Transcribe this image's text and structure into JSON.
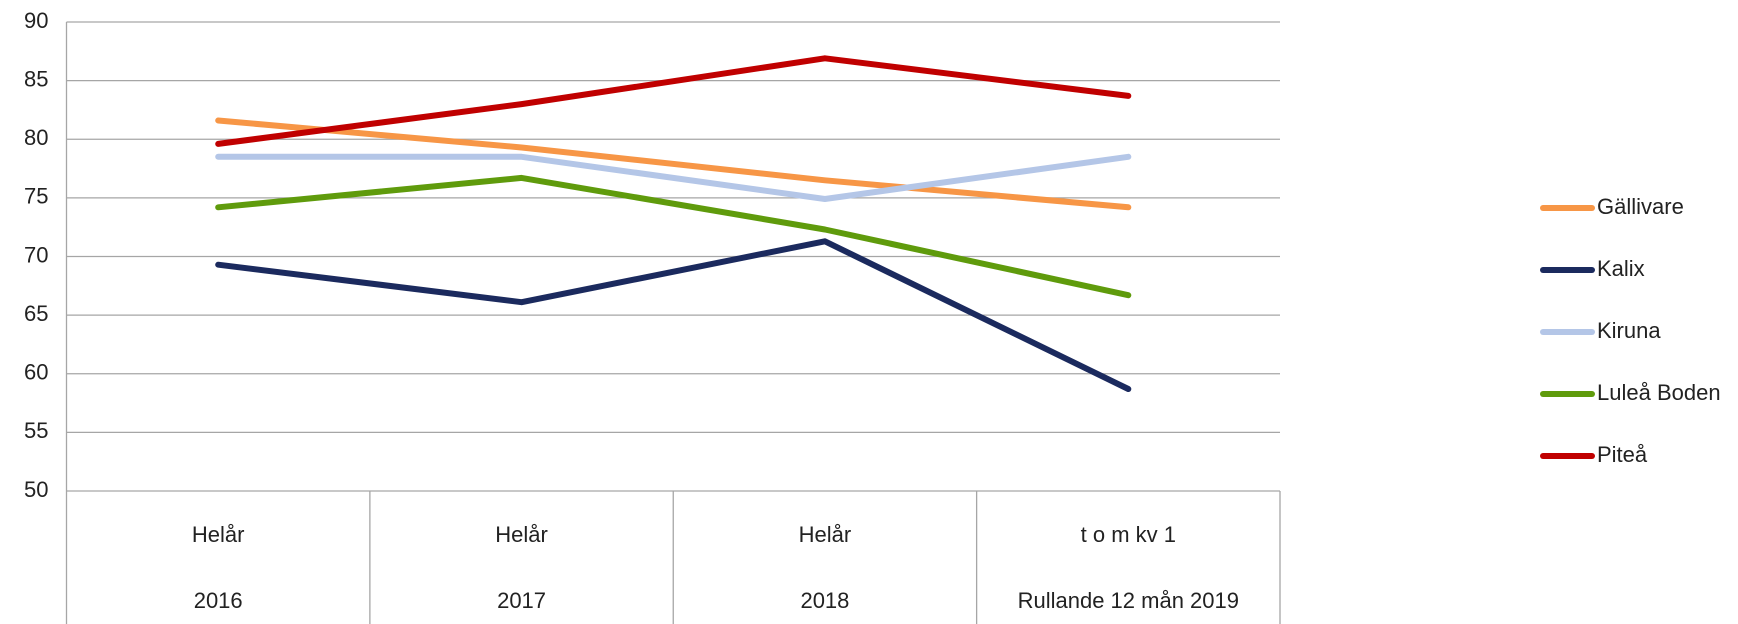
{
  "chart_data": {
    "type": "line",
    "categories": [
      [
        "Helår",
        "2016"
      ],
      [
        "Helår",
        "2017"
      ],
      [
        "Helår",
        "2018"
      ],
      [
        "t o m kv 1",
        "Rullande 12 mån 2019"
      ]
    ],
    "series": [
      {
        "name": "Gällivare",
        "color": "#f79646",
        "values": [
          81.6,
          79.3,
          76.5,
          74.2
        ]
      },
      {
        "name": "Kalix",
        "color": "#1b2a5e",
        "values": [
          69.3,
          66.1,
          71.3,
          58.7
        ]
      },
      {
        "name": "Kiruna",
        "color": "#b4c6e7",
        "values": [
          78.5,
          78.5,
          74.9,
          78.5
        ]
      },
      {
        "name": "Luleå Boden",
        "color": "#5f9b0c",
        "values": [
          74.2,
          76.7,
          72.3,
          66.7
        ]
      },
      {
        "name": "Piteå",
        "color": "#c00000",
        "values": [
          79.6,
          83.0,
          86.9,
          83.7
        ]
      }
    ],
    "ylim": [
      50,
      90
    ],
    "yticks": [
      50,
      55,
      60,
      65,
      70,
      75,
      80,
      85,
      90
    ],
    "grid": true,
    "legend": "right"
  }
}
